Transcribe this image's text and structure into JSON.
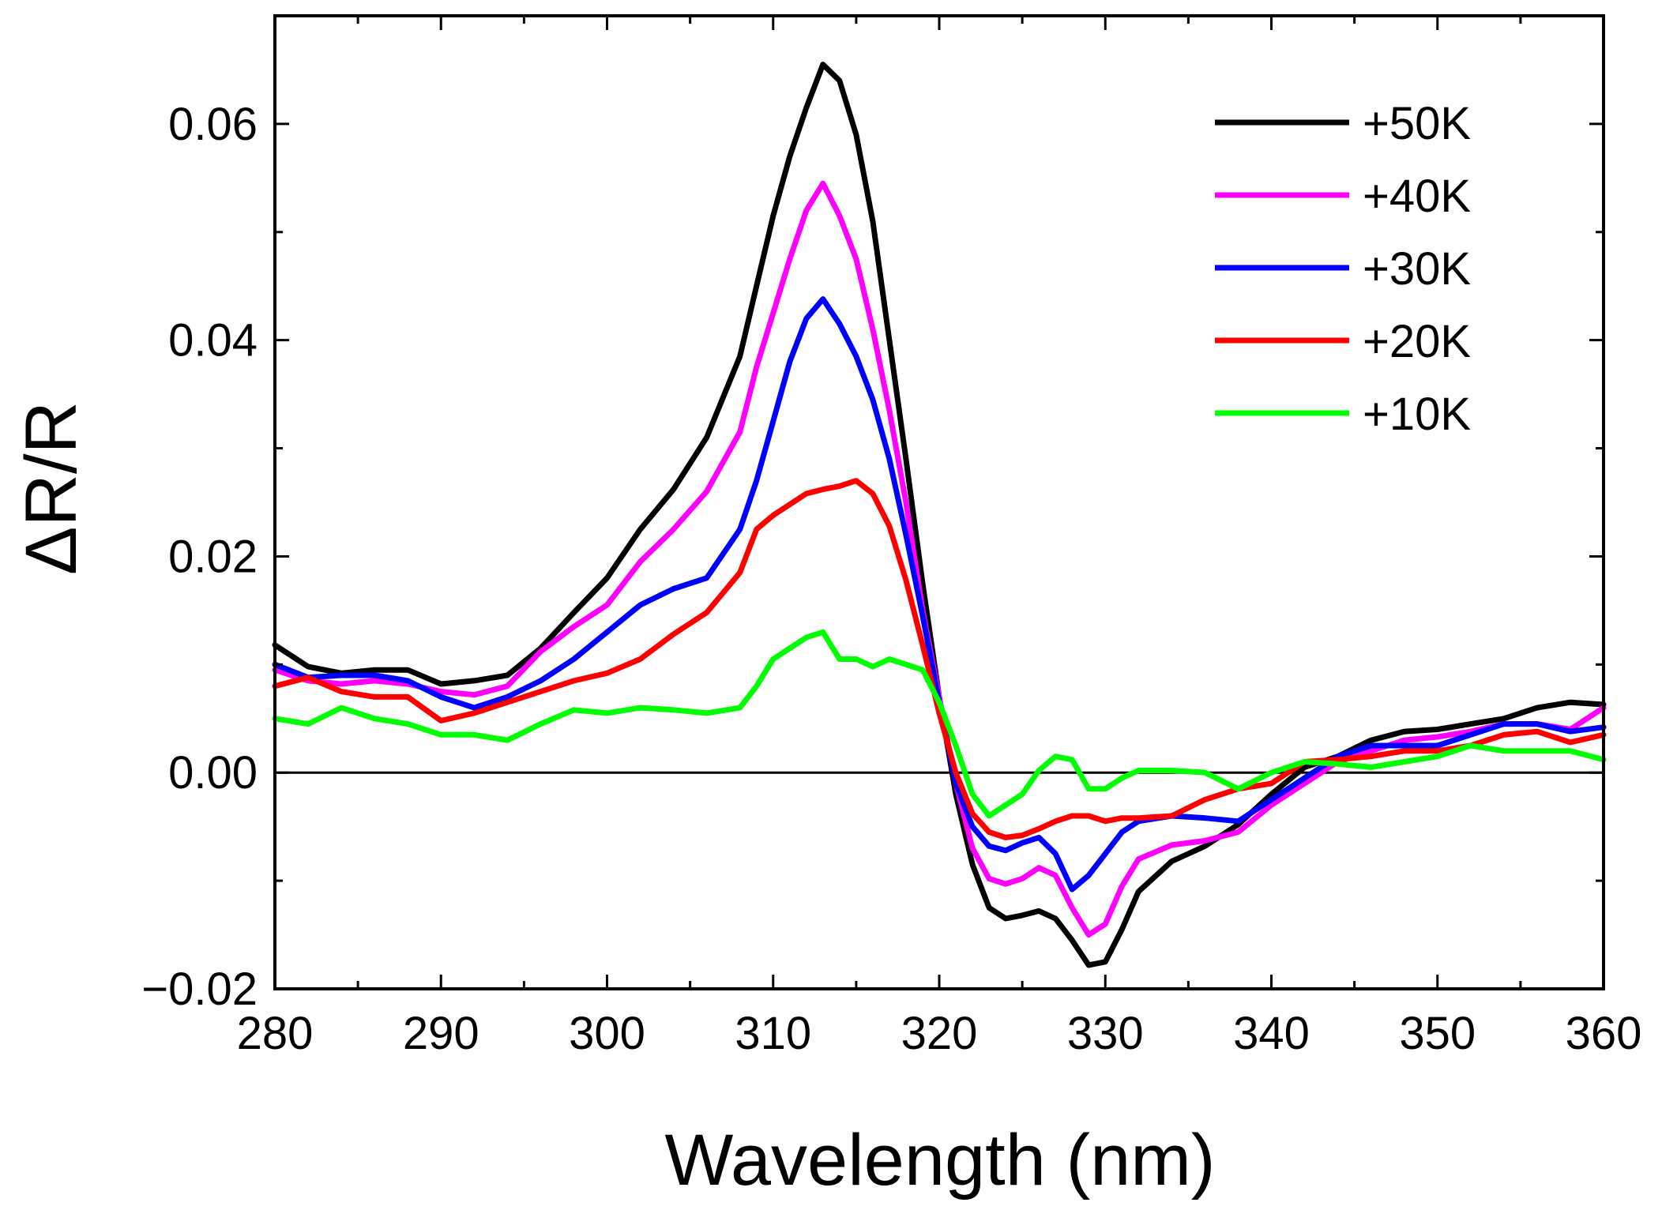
{
  "chart_data": {
    "type": "line",
    "title": "",
    "xlabel": "Wavelength (nm)",
    "ylabel": "ΔR/R",
    "xlim": [
      280,
      360
    ],
    "ylim": [
      -0.02,
      0.07
    ],
    "x_ticks": [
      "280",
      "290",
      "300",
      "310",
      "320",
      "330",
      "340",
      "350",
      "360"
    ],
    "y_ticks": [
      "−0.02",
      "0.00",
      "0.02",
      "0.04",
      "0.06"
    ],
    "legend_position": "top-right",
    "zero_line": true,
    "x": [
      280,
      282,
      284,
      286,
      288,
      290,
      292,
      294,
      296,
      298,
      300,
      302,
      304,
      306,
      308,
      309,
      310,
      311,
      312,
      313,
      314,
      315,
      316,
      317,
      318,
      319,
      320,
      321,
      322,
      323,
      324,
      325,
      326,
      327,
      328,
      329,
      330,
      331,
      332,
      334,
      336,
      338,
      340,
      342,
      344,
      346,
      348,
      350,
      352,
      354,
      356,
      358,
      360
    ],
    "series": [
      {
        "name": "+50K",
        "color": "#000000",
        "values": [
          0.0118,
          0.0098,
          0.0092,
          0.0095,
          0.0095,
          0.0082,
          0.0085,
          0.009,
          0.0115,
          0.0148,
          0.018,
          0.0225,
          0.0262,
          0.031,
          0.0385,
          0.045,
          0.0515,
          0.057,
          0.0615,
          0.0655,
          0.064,
          0.059,
          0.051,
          0.04,
          0.029,
          0.0175,
          0.007,
          -0.002,
          -0.0085,
          -0.0125,
          -0.0135,
          -0.0132,
          -0.0128,
          -0.0135,
          -0.0155,
          -0.0178,
          -0.0175,
          -0.0145,
          -0.011,
          -0.0082,
          -0.0068,
          -0.0048,
          -0.002,
          0.0005,
          0.0015,
          0.003,
          0.0038,
          0.004,
          0.0045,
          0.005,
          0.006,
          0.0065,
          0.0063
        ]
      },
      {
        "name": "+40K",
        "color": "#ff00ff",
        "values": [
          0.0095,
          0.0085,
          0.0082,
          0.0085,
          0.0082,
          0.0075,
          0.0072,
          0.008,
          0.0112,
          0.0135,
          0.0155,
          0.0195,
          0.0225,
          0.026,
          0.0315,
          0.0375,
          0.0425,
          0.0475,
          0.052,
          0.0545,
          0.0515,
          0.0475,
          0.041,
          0.0335,
          0.025,
          0.015,
          0.007,
          -0.001,
          -0.007,
          -0.0098,
          -0.0103,
          -0.0098,
          -0.0088,
          -0.0095,
          -0.0125,
          -0.015,
          -0.014,
          -0.0105,
          -0.008,
          -0.0067,
          -0.0063,
          -0.0055,
          -0.003,
          -0.001,
          0.001,
          0.002,
          0.003,
          0.0033,
          0.0038,
          0.0045,
          0.0045,
          0.004,
          0.006
        ]
      },
      {
        "name": "+30K",
        "color": "#0000ff",
        "values": [
          0.01,
          0.0088,
          0.009,
          0.009,
          0.0085,
          0.007,
          0.006,
          0.007,
          0.0085,
          0.0105,
          0.013,
          0.0155,
          0.017,
          0.018,
          0.0225,
          0.027,
          0.0325,
          0.038,
          0.042,
          0.0438,
          0.0415,
          0.0385,
          0.0345,
          0.029,
          0.022,
          0.0145,
          0.0065,
          -0.001,
          -0.005,
          -0.0068,
          -0.0072,
          -0.0065,
          -0.006,
          -0.0075,
          -0.0108,
          -0.0095,
          -0.0075,
          -0.0055,
          -0.0045,
          -0.004,
          -0.0042,
          -0.0045,
          -0.0025,
          -0.0005,
          0.0015,
          0.0025,
          0.0025,
          0.0025,
          0.0035,
          0.0045,
          0.0045,
          0.0038,
          0.0042
        ]
      },
      {
        "name": "+20K",
        "color": "#ff0000",
        "values": [
          0.008,
          0.0088,
          0.0075,
          0.007,
          0.007,
          0.0048,
          0.0055,
          0.0065,
          0.0075,
          0.0085,
          0.0092,
          0.0105,
          0.0128,
          0.0148,
          0.0185,
          0.0225,
          0.0238,
          0.0248,
          0.0258,
          0.0262,
          0.0265,
          0.027,
          0.0258,
          0.0228,
          0.0178,
          0.0118,
          0.0055,
          0.0,
          -0.0038,
          -0.0055,
          -0.006,
          -0.0058,
          -0.0052,
          -0.0045,
          -0.004,
          -0.004,
          -0.0045,
          -0.0042,
          -0.0042,
          -0.004,
          -0.0025,
          -0.0015,
          -0.001,
          0.001,
          0.0012,
          0.0015,
          0.002,
          0.002,
          0.0025,
          0.0035,
          0.0038,
          0.0028,
          0.0035
        ]
      },
      {
        "name": "+10K",
        "color": "#00ff00",
        "values": [
          0.005,
          0.0045,
          0.006,
          0.005,
          0.0045,
          0.0035,
          0.0035,
          0.003,
          0.0045,
          0.0058,
          0.0055,
          0.006,
          0.0058,
          0.0055,
          0.006,
          0.008,
          0.0105,
          0.0115,
          0.0125,
          0.013,
          0.0105,
          0.0105,
          0.0098,
          0.0105,
          0.01,
          0.0095,
          0.0065,
          0.0025,
          -0.002,
          -0.004,
          -0.003,
          -0.002,
          0.0002,
          0.0015,
          0.0012,
          -0.0015,
          -0.0015,
          -0.0005,
          0.0002,
          0.0002,
          0.0,
          -0.0015,
          0.0,
          0.001,
          0.0008,
          0.0005,
          0.001,
          0.0015,
          0.0025,
          0.002,
          0.002,
          0.002,
          0.0012
        ]
      }
    ]
  }
}
